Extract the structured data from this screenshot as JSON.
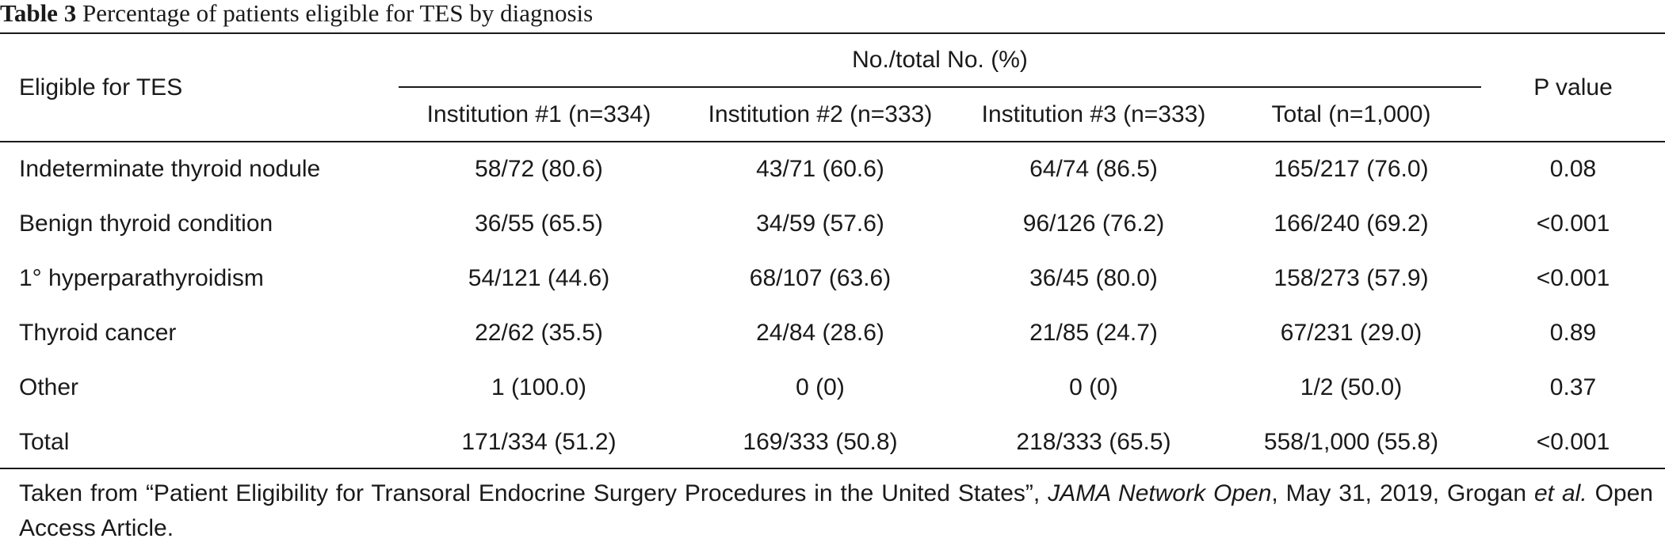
{
  "caption": {
    "label": "Table 3",
    "text": " Percentage of patients eligible for TES by diagnosis"
  },
  "header": {
    "row_label": "Eligible for TES",
    "group_label": "No./total No. (%)",
    "columns": [
      "Institution #1 (n=334)",
      "Institution #2 (n=333)",
      "Institution #3 (n=333)",
      "Total (n=1,000)"
    ],
    "p_label": "P value"
  },
  "rows": [
    {
      "label": "Indeterminate thyroid nodule",
      "values": [
        "58/72 (80.6)",
        "43/71 (60.6)",
        "64/74 (86.5)",
        "165/217 (76.0)"
      ],
      "p": "0.08"
    },
    {
      "label": "Benign thyroid condition",
      "values": [
        "36/55 (65.5)",
        "34/59 (57.6)",
        "96/126 (76.2)",
        "166/240 (69.2)"
      ],
      "p": "<0.001"
    },
    {
      "label": "1° hyperparathyroidism",
      "values": [
        "54/121 (44.6)",
        "68/107 (63.6)",
        "36/45 (80.0)",
        "158/273 (57.9)"
      ],
      "p": "<0.001"
    },
    {
      "label": "Thyroid cancer",
      "values": [
        "22/62 (35.5)",
        "24/84 (28.6)",
        "21/85 (24.7)",
        "67/231 (29.0)"
      ],
      "p": "0.89"
    },
    {
      "label": "Other",
      "values": [
        "1 (100.0)",
        "0 (0)",
        "0 (0)",
        "1/2 (50.0)"
      ],
      "p": "0.37"
    },
    {
      "label": "Total",
      "values": [
        "171/334 (51.2)",
        "169/333 (50.8)",
        "218/333 (65.5)",
        "558/1,000 (55.8)"
      ],
      "p": "<0.001"
    }
  ],
  "footnote": {
    "prefix": "Taken from “Patient Eligibility for Transoral Endocrine Surgery Procedures in the United States”, ",
    "journal": "JAMA Network Open",
    "middle": ", May 31, 2019, Grogan ",
    "etal": "et al.",
    "suffix": " Open Access Article."
  }
}
